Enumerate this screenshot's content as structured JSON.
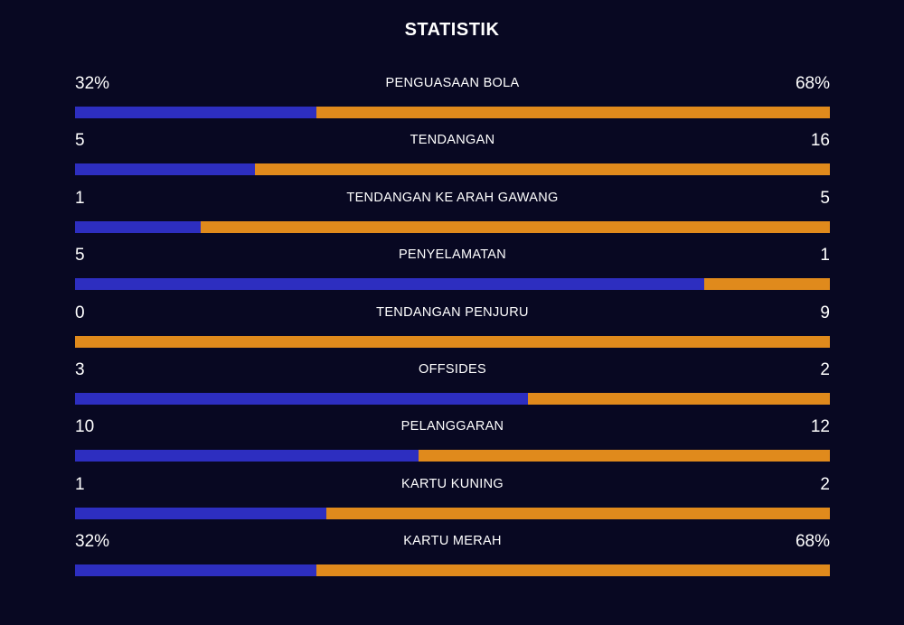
{
  "title": "STATISTIK",
  "colors": {
    "background": "#080822",
    "home": "#2d2ec0",
    "away": "#e08a1c"
  },
  "stats": [
    {
      "label": "PENGUASAAN BOLA",
      "home": "32%",
      "away": "68%",
      "home_share": 0.32
    },
    {
      "label": "TENDANGAN",
      "home": "5",
      "away": "16",
      "home_share": 0.2381
    },
    {
      "label": "TENDANGAN KE ARAH GAWANG",
      "home": "1",
      "away": "5",
      "home_share": 0.1667
    },
    {
      "label": "PENYELAMATAN",
      "home": "5",
      "away": "1",
      "home_share": 0.8333
    },
    {
      "label": "TENDANGAN PENJURU",
      "home": "0",
      "away": "9",
      "home_share": 0.0
    },
    {
      "label": "OFFSIDES",
      "home": "3",
      "away": "2",
      "home_share": 0.6
    },
    {
      "label": "PELANGGARAN",
      "home": "10",
      "away": "12",
      "home_share": 0.4545
    },
    {
      "label": "KARTU KUNING",
      "home": "1",
      "away": "2",
      "home_share": 0.3333
    },
    {
      "label": "KARTU MERAH",
      "home": "32%",
      "away": "68%",
      "home_share": 0.32
    }
  ]
}
